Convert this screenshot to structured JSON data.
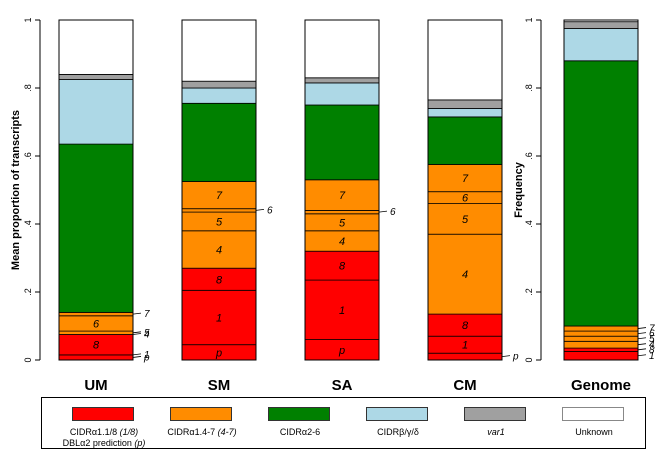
{
  "chart_data": [
    {
      "type": "bar",
      "stacked": true,
      "ylabel": "Mean proportion of transcripts",
      "ylim": [
        0,
        1
      ],
      "yticks": [
        0,
        0.2,
        0.4,
        0.6,
        0.8,
        1
      ],
      "ytick_labels": [
        "0",
        ".2",
        ".4",
        ".6",
        ".8",
        "1"
      ],
      "categories": [
        "UM",
        "SM",
        "SA",
        "CM"
      ],
      "group_colors": {
        "CIDRα1.1/8": "#ff0000",
        "CIDRα1.4-7": "#ff8c00",
        "CIDRα2-6": "#008000",
        "CIDRβ/γ/δ": "#add8e6",
        "var1": "#a0a0a0",
        "Unknown": "#ffffff"
      },
      "bars": [
        {
          "category": "UM",
          "segments": [
            {
              "group": "CIDRα1.1/8",
              "label": "p",
              "value": 0.015
            },
            {
              "group": "CIDRα1.1/8",
              "label": "1",
              "value": 0.0
            },
            {
              "group": "CIDRα1.1/8",
              "label": "8",
              "value": 0.06
            },
            {
              "group": "CIDRα1.4-7",
              "label": "4",
              "value": 0.0
            },
            {
              "group": "CIDRα1.4-7",
              "label": "5",
              "value": 0.01
            },
            {
              "group": "CIDRα1.4-7",
              "label": "6",
              "value": 0.045
            },
            {
              "group": "CIDRα1.4-7",
              "label": "7",
              "value": 0.01
            },
            {
              "group": "CIDRα2-6",
              "label": "",
              "value": 0.495
            },
            {
              "group": "CIDRβ/γ/δ",
              "label": "",
              "value": 0.19
            },
            {
              "group": "var1",
              "label": "",
              "value": 0.015
            },
            {
              "group": "Unknown",
              "label": "",
              "value": 0.16
            }
          ]
        },
        {
          "category": "SM",
          "segments": [
            {
              "group": "CIDRα1.1/8",
              "label": "p",
              "value": 0.045
            },
            {
              "group": "CIDRα1.1/8",
              "label": "1",
              "value": 0.16
            },
            {
              "group": "CIDRα1.1/8",
              "label": "8",
              "value": 0.065
            },
            {
              "group": "CIDRα1.4-7",
              "label": "4",
              "value": 0.11
            },
            {
              "group": "CIDRα1.4-7",
              "label": "5",
              "value": 0.055
            },
            {
              "group": "CIDRα1.4-7",
              "label": "6",
              "value": 0.01
            },
            {
              "group": "CIDRα1.4-7",
              "label": "7",
              "value": 0.08
            },
            {
              "group": "CIDRα2-6",
              "label": "",
              "value": 0.23
            },
            {
              "group": "CIDRβ/γ/δ",
              "label": "",
              "value": 0.045
            },
            {
              "group": "var1",
              "label": "",
              "value": 0.02
            },
            {
              "group": "Unknown",
              "label": "",
              "value": 0.18
            }
          ]
        },
        {
          "category": "SA",
          "segments": [
            {
              "group": "CIDRα1.1/8",
              "label": "p",
              "value": 0.06
            },
            {
              "group": "CIDRα1.1/8",
              "label": "1",
              "value": 0.175
            },
            {
              "group": "CIDRα1.1/8",
              "label": "8",
              "value": 0.085
            },
            {
              "group": "CIDRα1.4-7",
              "label": "4",
              "value": 0.06
            },
            {
              "group": "CIDRα1.4-7",
              "label": "5",
              "value": 0.05
            },
            {
              "group": "CIDRα1.4-7",
              "label": "6",
              "value": 0.01
            },
            {
              "group": "CIDRα1.4-7",
              "label": "7",
              "value": 0.09
            },
            {
              "group": "CIDRα2-6",
              "label": "",
              "value": 0.22
            },
            {
              "group": "CIDRβ/γ/δ",
              "label": "",
              "value": 0.065
            },
            {
              "group": "var1",
              "label": "",
              "value": 0.015
            },
            {
              "group": "Unknown",
              "label": "",
              "value": 0.17
            }
          ]
        },
        {
          "category": "CM",
          "segments": [
            {
              "group": "CIDRα1.1/8",
              "label": "p",
              "value": 0.02
            },
            {
              "group": "CIDRα1.1/8",
              "label": "1",
              "value": 0.05
            },
            {
              "group": "CIDRα1.1/8",
              "label": "8",
              "value": 0.065
            },
            {
              "group": "CIDRα1.4-7",
              "label": "4",
              "value": 0.235
            },
            {
              "group": "CIDRα1.4-7",
              "label": "5",
              "value": 0.09
            },
            {
              "group": "CIDRα1.4-7",
              "label": "6",
              "value": 0.035
            },
            {
              "group": "CIDRα1.4-7",
              "label": "7",
              "value": 0.08
            },
            {
              "group": "CIDRα2-6",
              "label": "",
              "value": 0.14
            },
            {
              "group": "CIDRβ/γ/δ",
              "label": "",
              "value": 0.025
            },
            {
              "group": "var1",
              "label": "",
              "value": 0.025
            },
            {
              "group": "Unknown",
              "label": "",
              "value": 0.235
            }
          ]
        }
      ]
    },
    {
      "type": "bar",
      "stacked": true,
      "ylabel": "Frequency",
      "ylim": [
        0,
        1
      ],
      "yticks": [
        0,
        0.2,
        0.4,
        0.6,
        0.8,
        1
      ],
      "ytick_labels": [
        "0",
        ".2",
        ".4",
        ".6",
        ".8",
        "1"
      ],
      "categories": [
        "Genome"
      ],
      "bars": [
        {
          "category": "Genome",
          "segments": [
            {
              "group": "CIDRα1.1/8",
              "label": "1",
              "value": 0.025
            },
            {
              "group": "CIDRα1.1/8",
              "label": "8",
              "value": 0.01
            },
            {
              "group": "CIDRα1.4-7",
              "label": "4",
              "value": 0.02
            },
            {
              "group": "CIDRα1.4-7",
              "label": "5",
              "value": 0.015
            },
            {
              "group": "CIDRα1.4-7",
              "label": "6",
              "value": 0.015
            },
            {
              "group": "CIDRα1.4-7",
              "label": "7",
              "value": 0.015
            },
            {
              "group": "CIDRα2-6",
              "label": "",
              "value": 0.78
            },
            {
              "group": "CIDRβ/γ/δ",
              "label": "",
              "value": 0.095
            },
            {
              "group": "var1",
              "label": "",
              "value": 0.02
            },
            {
              "group": "Unknown",
              "label": "",
              "value": 0.005
            }
          ]
        }
      ]
    }
  ],
  "legend": [
    {
      "name": "CIDRα1.1/8",
      "paren": "(1/8)",
      "sub": "DBLα2 prediction",
      "sub_paren": "(p)",
      "color": "#ff0000"
    },
    {
      "name": "CIDRα1.4-7",
      "paren": "(4-7)",
      "sub": "",
      "sub_paren": "",
      "color": "#ff8c00"
    },
    {
      "name": "CIDRα2-6",
      "paren": "",
      "sub": "",
      "sub_paren": "",
      "color": "#008000"
    },
    {
      "name": "CIDRβ/γ/δ",
      "paren": "",
      "sub": "",
      "sub_paren": "",
      "color": "#add8e6"
    },
    {
      "name": "var1",
      "paren": "",
      "sub": "",
      "sub_paren": "",
      "color": "#a0a0a0",
      "italic": true
    },
    {
      "name": "Unknown",
      "paren": "",
      "sub": "",
      "sub_paren": "",
      "color": "#ffffff"
    }
  ]
}
